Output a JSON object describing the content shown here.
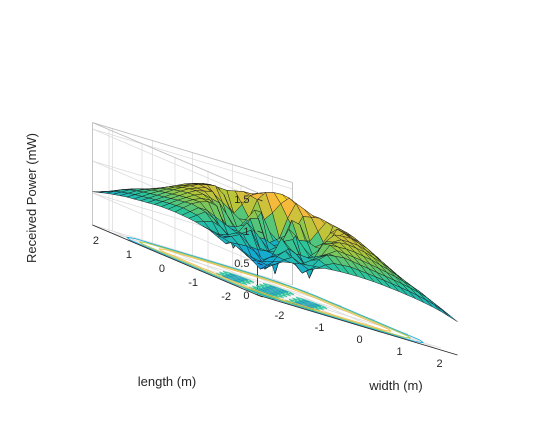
{
  "chart_data": {
    "type": "surface",
    "xlabel": "width (m)",
    "ylabel": "length (m)",
    "zlabel": "Received Power (mW)",
    "xlim": [
      -2.5,
      2.5
    ],
    "ylim": [
      -2.5,
      2.5
    ],
    "zlim": [
      0,
      1.6
    ],
    "x_ticks": [
      -2,
      -1,
      0,
      1,
      2
    ],
    "y_ticks": [
      -2,
      -1,
      0,
      1,
      2
    ],
    "z_ticks": [
      0,
      0.5,
      1,
      1.5
    ],
    "grid": true,
    "colormap": [
      "#3e26a8",
      "#2f6ef0",
      "#11a8d6",
      "#2cc59a",
      "#a6c83a",
      "#f5ba3c",
      "#f9fb15"
    ],
    "contour_on_floor": true,
    "z_approx": {
      "x": [
        -2.5,
        -2,
        -1.5,
        -1,
        -0.5,
        0,
        0.5,
        1,
        1.5,
        2,
        2.5
      ],
      "y": [
        -2.5,
        -2,
        -1.5,
        -1,
        -0.5,
        0,
        0.5,
        1,
        1.5,
        2,
        2.5
      ],
      "values": [
        [
          0.52,
          0.62,
          0.68,
          0.72,
          0.75,
          0.76,
          0.75,
          0.72,
          0.68,
          0.62,
          0.52
        ],
        [
          0.6,
          0.3,
          0.85,
          0.45,
          0.95,
          1.0,
          0.95,
          0.9,
          0.85,
          0.78,
          0.62
        ],
        [
          0.66,
          0.85,
          0.25,
          1.05,
          0.4,
          1.1,
          1.15,
          1.1,
          1.0,
          0.85,
          0.68
        ],
        [
          0.7,
          0.5,
          1.0,
          0.3,
          1.1,
          0.35,
          1.2,
          1.25,
          1.15,
          0.95,
          0.72
        ],
        [
          0.74,
          0.95,
          0.45,
          1.1,
          0.2,
          1.2,
          0.4,
          1.3,
          1.25,
          1.0,
          0.75
        ],
        [
          0.75,
          1.0,
          1.1,
          0.4,
          1.2,
          0.25,
          1.35,
          0.5,
          1.35,
          1.05,
          0.76
        ],
        [
          0.74,
          0.95,
          1.15,
          1.2,
          0.45,
          1.3,
          0.3,
          1.4,
          1.3,
          1.0,
          0.75
        ],
        [
          0.7,
          0.9,
          1.1,
          1.25,
          1.3,
          0.55,
          1.4,
          1.5,
          1.25,
          0.95,
          0.72
        ],
        [
          0.66,
          0.85,
          1.0,
          1.15,
          1.25,
          1.3,
          1.3,
          1.25,
          1.1,
          0.85,
          0.68
        ],
        [
          0.6,
          0.78,
          0.85,
          0.95,
          1.0,
          1.05,
          1.0,
          0.95,
          0.85,
          0.78,
          0.62
        ],
        [
          0.52,
          0.62,
          0.68,
          0.72,
          0.75,
          0.76,
          0.75,
          0.72,
          0.68,
          0.62,
          0.52
        ]
      ]
    }
  }
}
